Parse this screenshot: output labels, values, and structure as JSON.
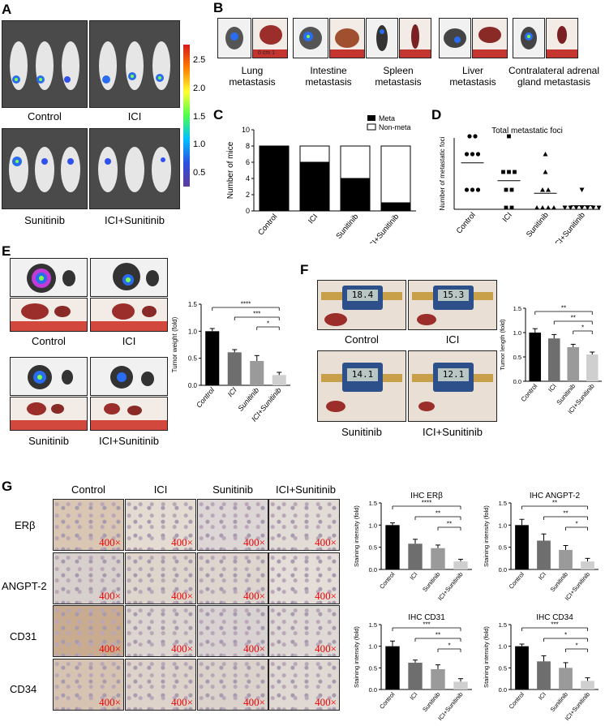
{
  "panels": {
    "A": "A",
    "B": "B",
    "C": "C",
    "D": "D",
    "E": "E",
    "F": "F",
    "G": "G"
  },
  "panelA": {
    "groups": [
      "Control",
      "ICI",
      "Sunitinib",
      "ICI+Sunitinib"
    ],
    "colorbar_ticks": [
      "2.5",
      "2.0",
      "1.5",
      "1.0",
      "0.5"
    ]
  },
  "panelB": {
    "sites": [
      "Lung\nmetastasis",
      "Intestine\nmetastasis",
      "Spleen\nmetastasis",
      "Liver\nmetastasis",
      "Contralateral adrenal\ngland metastasis"
    ],
    "ruler_text": "0 cm 1"
  },
  "colors": {
    "black": "#000000",
    "dark_gray": "#6e6e6e",
    "mid_gray": "#9a9a9a",
    "light_gray": "#cfcfcf",
    "heat_top": "#d7191c",
    "heat_bottom": "#5e3c99"
  },
  "chart_data": [
    {
      "id": "C",
      "type": "bar",
      "stacked": true,
      "categories": [
        "Control",
        "ICI",
        "Sunitinib",
        "ICI+Sunitinib"
      ],
      "series": [
        {
          "name": "Meta",
          "values": [
            8,
            6,
            4,
            1
          ],
          "color": "#000000"
        },
        {
          "name": "Non-meta",
          "values": [
            0,
            2,
            4,
            7
          ],
          "color": "#ffffff"
        }
      ],
      "ylabel": "Number of mice",
      "ylim": [
        0,
        10
      ],
      "yticks": [
        0,
        2,
        4,
        6,
        8,
        10
      ],
      "legend": "top-right"
    },
    {
      "id": "D",
      "type": "scatter",
      "title": "Total metastatic foci",
      "categories": [
        "Control",
        "ICI",
        "Sunitinib",
        "ICI+Sunitinib"
      ],
      "points": [
        [
          4,
          4,
          3,
          3,
          3,
          1,
          1,
          1
        ],
        [
          4,
          2,
          2,
          2,
          1,
          1,
          0,
          0
        ],
        [
          3,
          2,
          1,
          1,
          0,
          0,
          0,
          0
        ],
        [
          1,
          0,
          0,
          0,
          0,
          0,
          0,
          0
        ]
      ],
      "means": [
        2.6,
        1.6,
        0.9,
        0.2
      ],
      "ylabel": "Number of metastatic foci",
      "ylim": [
        0,
        4
      ]
    },
    {
      "id": "E",
      "type": "bar",
      "categories": [
        "Control",
        "ICI",
        "Sunitinib",
        "ICI+Sunitinib"
      ],
      "values": [
        1.0,
        0.61,
        0.45,
        0.19
      ],
      "errors": [
        0.05,
        0.05,
        0.1,
        0.05
      ],
      "ylabel": "Tumor weight (fold)",
      "ylim": [
        0,
        1.5
      ],
      "yticks": [
        "0.0",
        "0.5",
        "1.0",
        "1.5"
      ],
      "significance": [
        {
          "from": 0,
          "to": 3,
          "label": "****"
        },
        {
          "from": 1,
          "to": 3,
          "label": "***"
        },
        {
          "from": 2,
          "to": 3,
          "label": "*"
        }
      ]
    },
    {
      "id": "F",
      "type": "bar",
      "categories": [
        "Control",
        "ICI",
        "Sunitinib",
        "ICI+Sunitinib"
      ],
      "values": [
        1.0,
        0.88,
        0.7,
        0.55
      ],
      "errors": [
        0.08,
        0.08,
        0.06,
        0.05
      ],
      "ylabel": "Tumor length (fold)",
      "ylim": [
        0,
        1.5
      ],
      "yticks": [
        "0.0",
        "0.5",
        "1.0",
        "1.5"
      ],
      "significance": [
        {
          "from": 0,
          "to": 3,
          "label": "**"
        },
        {
          "from": 1,
          "to": 3,
          "label": "**"
        },
        {
          "from": 2,
          "to": 3,
          "label": "*"
        }
      ]
    },
    {
      "id": "G1",
      "type": "bar",
      "title": "IHC ERβ",
      "categories": [
        "Control",
        "ICI",
        "Sunitinib",
        "ICI+Sunitinib"
      ],
      "values": [
        1.0,
        0.58,
        0.48,
        0.18
      ],
      "errors": [
        0.05,
        0.1,
        0.07,
        0.05
      ],
      "ylabel": "Staining intensity (fold)",
      "ylim": [
        0,
        1.5
      ],
      "yticks": [
        "0.0",
        "0.5",
        "1.0",
        "1.5"
      ],
      "significance": [
        {
          "from": 0,
          "to": 3,
          "label": "****"
        },
        {
          "from": 1,
          "to": 3,
          "label": "**"
        },
        {
          "from": 2,
          "to": 3,
          "label": "**"
        }
      ]
    },
    {
      "id": "G2",
      "type": "bar",
      "title": "IHC ANGPT-2",
      "categories": [
        "Control",
        "ICI",
        "Sunitinib",
        "ICI+Sunitinib"
      ],
      "values": [
        1.0,
        0.65,
        0.44,
        0.18
      ],
      "errors": [
        0.13,
        0.15,
        0.1,
        0.07
      ],
      "ylabel": "Staining intensity (fold)",
      "ylim": [
        0,
        1.5
      ],
      "yticks": [
        "0.0",
        "0.5",
        "1.0",
        "1.5"
      ],
      "significance": [
        {
          "from": 0,
          "to": 3,
          "label": "**"
        },
        {
          "from": 1,
          "to": 3,
          "label": "**"
        },
        {
          "from": 2,
          "to": 3,
          "label": "*"
        }
      ]
    },
    {
      "id": "G3",
      "type": "bar",
      "title": "IHC CD31",
      "categories": [
        "Control",
        "ICI",
        "Sunitinib",
        "ICI+Sunitinib"
      ],
      "values": [
        1.0,
        0.62,
        0.47,
        0.18
      ],
      "errors": [
        0.12,
        0.06,
        0.1,
        0.07
      ],
      "ylabel": "Staining intensity (fold)",
      "ylim": [
        0,
        1.5
      ],
      "yticks": [
        "0.0",
        "0.5",
        "1.0",
        "1.5"
      ],
      "significance": [
        {
          "from": 0,
          "to": 3,
          "label": "***"
        },
        {
          "from": 1,
          "to": 3,
          "label": "**"
        },
        {
          "from": 2,
          "to": 3,
          "label": "*"
        }
      ]
    },
    {
      "id": "G4",
      "type": "bar",
      "title": "IHC CD34",
      "categories": [
        "Control",
        "ICI",
        "Sunitinib",
        "ICI+Sunitinib"
      ],
      "values": [
        1.0,
        0.65,
        0.5,
        0.2
      ],
      "errors": [
        0.05,
        0.13,
        0.12,
        0.07
      ],
      "ylabel": "Staining intensity (fold)",
      "ylim": [
        0,
        1.5
      ],
      "yticks": [
        "0.0",
        "0.5",
        "1.0",
        "1.5"
      ],
      "significance": [
        {
          "from": 0,
          "to": 3,
          "label": "***"
        },
        {
          "from": 1,
          "to": 3,
          "label": "*"
        },
        {
          "from": 2,
          "to": 3,
          "label": "*"
        }
      ]
    }
  ],
  "panelE": {
    "groups": [
      "Control",
      "ICI",
      "Sunitinib",
      "ICI+Sunitinib"
    ]
  },
  "panelF": {
    "groups": [
      "Control",
      "ICI",
      "Sunitinib",
      "ICI+Sunitinib"
    ],
    "readings": [
      "18.4",
      "15.3",
      "14.1",
      "12.1"
    ]
  },
  "panelG": {
    "columns": [
      "Control",
      "ICI",
      "Sunitinib",
      "ICI+Sunitinib"
    ],
    "rows": [
      "ERβ",
      "ANGPT-2",
      "CD31",
      "CD34"
    ],
    "magnification": "400×"
  }
}
